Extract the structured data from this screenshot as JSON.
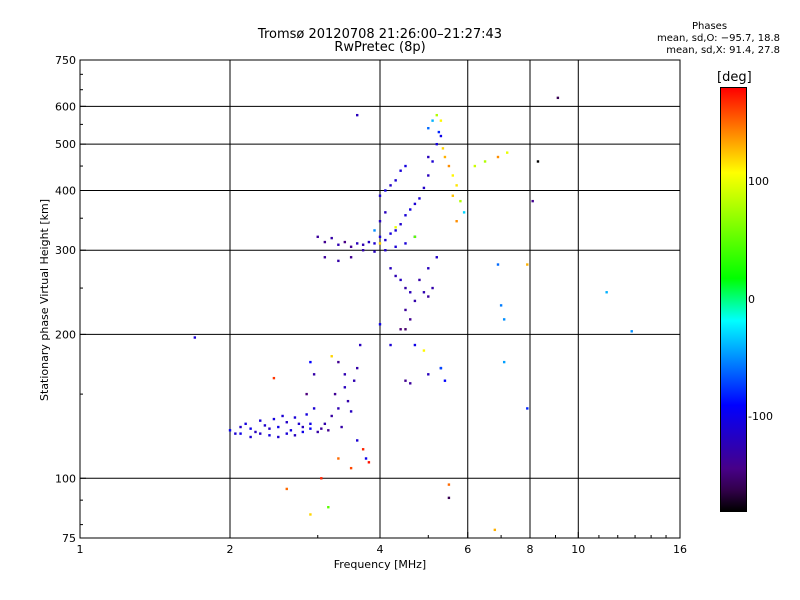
{
  "chart_data": {
    "type": "scatter",
    "title": "Tromsø 20120708 21:26:00–21:27:43",
    "subtitle": "RwPretec (8p)",
    "xlabel": "Frequency [MHz]",
    "ylabel": "Stationary phase Virtual Height [km]",
    "x_scale": "log",
    "y_scale": "log",
    "xlim": [
      1,
      16
    ],
    "ylim": [
      75,
      750
    ],
    "x_ticks": [
      1,
      2,
      4,
      6,
      8,
      10,
      16
    ],
    "y_ticks": [
      75,
      100,
      200,
      300,
      400,
      500,
      600,
      750
    ],
    "grid": true,
    "phase_stats": {
      "title": "Phases",
      "line_o": "mean, sd,O: −95.7, 18.8",
      "line_x": "mean, sd,X:  91.4, 27.8"
    },
    "colorbar": {
      "unit": "[deg]",
      "ticks": [
        100,
        0,
        -100
      ],
      "range": [
        -180,
        180
      ]
    },
    "series": [
      {
        "points": [
          [
            2.05,
            124,
            -110
          ],
          [
            2.1,
            128,
            -115
          ],
          [
            2.15,
            130,
            -105
          ],
          [
            2.2,
            127,
            -100
          ],
          [
            2.25,
            125,
            -120
          ],
          [
            2.3,
            132,
            -108
          ],
          [
            2.35,
            129,
            -112
          ],
          [
            2.4,
            127,
            -118
          ],
          [
            2.45,
            133,
            -105
          ],
          [
            2.5,
            128,
            -100
          ],
          [
            2.55,
            135,
            -110
          ],
          [
            2.6,
            131,
            -115
          ],
          [
            2.65,
            126,
            -102
          ],
          [
            2.7,
            134,
            -108
          ],
          [
            2.75,
            130,
            -112
          ],
          [
            2.8,
            128,
            -120
          ],
          [
            2.85,
            136,
            -105
          ],
          [
            2.9,
            130,
            -100
          ],
          [
            2.95,
            140,
            -110
          ],
          [
            3.0,
            125,
            -130
          ],
          [
            3.05,
            127,
            -135
          ],
          [
            3.1,
            130,
            -128
          ],
          [
            3.15,
            126,
            -140
          ],
          [
            3.2,
            135,
            -132
          ],
          [
            3.25,
            150,
            -138
          ],
          [
            3.3,
            140,
            -125
          ],
          [
            3.35,
            128,
            -130
          ],
          [
            3.4,
            155,
            -120
          ],
          [
            3.45,
            145,
            -128
          ],
          [
            3.5,
            138,
            -118
          ],
          [
            3.55,
            160,
            -125
          ],
          [
            3.6,
            170,
            -130
          ],
          [
            3.65,
            190,
            -120
          ],
          [
            2.0,
            126,
            -95
          ],
          [
            2.1,
            124,
            -100
          ],
          [
            2.2,
            122,
            -110
          ],
          [
            2.3,
            124,
            -115
          ],
          [
            2.4,
            123,
            -105
          ],
          [
            2.5,
            122,
            -112
          ],
          [
            2.6,
            124,
            -108
          ],
          [
            2.7,
            123,
            -118
          ],
          [
            2.8,
            125,
            -100
          ],
          [
            2.9,
            127,
            -95
          ],
          [
            2.45,
            162,
            165
          ],
          [
            2.85,
            150,
            -150
          ],
          [
            2.9,
            175,
            -90
          ],
          [
            2.95,
            165,
            -130
          ],
          [
            3.3,
            175,
            -140
          ],
          [
            3.4,
            165,
            -125
          ],
          [
            3.7,
            115,
            170
          ],
          [
            3.75,
            110,
            -100
          ],
          [
            3.8,
            108,
            175
          ],
          [
            3.6,
            120,
            -110
          ],
          [
            2.6,
            95,
            150
          ],
          [
            2.9,
            84,
            120
          ],
          [
            3.05,
            100,
            170
          ],
          [
            3.15,
            87,
            50
          ]
        ]
      },
      {
        "points": [
          [
            3.0,
            320,
            -135
          ],
          [
            3.1,
            312,
            -140
          ],
          [
            3.2,
            318,
            -130
          ],
          [
            3.3,
            308,
            -125
          ],
          [
            3.4,
            312,
            -145
          ],
          [
            3.5,
            305,
            -138
          ],
          [
            3.6,
            310,
            -120
          ],
          [
            3.7,
            308,
            -125
          ],
          [
            3.8,
            312,
            -118
          ],
          [
            3.9,
            310,
            -112
          ],
          [
            4.0,
            320,
            -108
          ],
          [
            4.1,
            315,
            -110
          ],
          [
            4.2,
            325,
            -105
          ],
          [
            4.3,
            330,
            -108
          ],
          [
            4.4,
            340,
            -112
          ],
          [
            4.5,
            355,
            -108
          ],
          [
            4.6,
            365,
            -105
          ],
          [
            4.7,
            375,
            -110
          ],
          [
            4.8,
            385,
            -108
          ],
          [
            4.9,
            405,
            -115
          ],
          [
            5.0,
            430,
            -120
          ],
          [
            5.1,
            460,
            -110
          ],
          [
            5.2,
            500,
            -105
          ],
          [
            5.3,
            520,
            -100
          ],
          [
            3.1,
            290,
            -135
          ],
          [
            3.3,
            285,
            -130
          ],
          [
            3.5,
            290,
            -140
          ],
          [
            3.7,
            300,
            -128
          ],
          [
            3.9,
            298,
            -120
          ],
          [
            4.1,
            300,
            -115
          ],
          [
            4.3,
            305,
            -110
          ],
          [
            4.5,
            310,
            -108
          ],
          [
            4.7,
            320,
            -112
          ],
          [
            4.0,
            390,
            -110
          ],
          [
            4.1,
            400,
            -105
          ],
          [
            4.2,
            410,
            -115
          ],
          [
            4.3,
            420,
            -110
          ],
          [
            4.4,
            440,
            -108
          ],
          [
            4.5,
            450,
            -105
          ],
          [
            4.1,
            360,
            -120
          ],
          [
            4.0,
            345,
            -118
          ],
          [
            4.2,
            275,
            -120
          ],
          [
            4.3,
            265,
            -125
          ],
          [
            4.4,
            260,
            -118
          ],
          [
            4.5,
            250,
            -130
          ],
          [
            4.6,
            245,
            -122
          ],
          [
            4.7,
            235,
            -128
          ],
          [
            4.5,
            225,
            -135
          ],
          [
            4.6,
            215,
            -140
          ],
          [
            4.4,
            205,
            -150
          ],
          [
            4.5,
            205,
            -155
          ],
          [
            4.8,
            260,
            -130
          ],
          [
            4.9,
            245,
            -125
          ],
          [
            5.0,
            240,
            -135
          ],
          [
            5.1,
            250,
            -128
          ],
          [
            5.0,
            275,
            -120
          ],
          [
            5.2,
            290,
            -115
          ],
          [
            4.0,
            210,
            -100
          ],
          [
            4.2,
            190,
            -110
          ],
          [
            4.5,
            160,
            -140
          ],
          [
            4.6,
            158,
            -135
          ],
          [
            4.7,
            190,
            -100
          ],
          [
            5.0,
            165,
            -120
          ],
          [
            5.3,
            170,
            -100
          ],
          [
            5.4,
            160,
            -90
          ],
          [
            5.0,
            540,
            -60
          ],
          [
            5.1,
            560,
            -40
          ],
          [
            5.2,
            575,
            80
          ],
          [
            5.3,
            560,
            110
          ],
          [
            5.25,
            530,
            -80
          ],
          [
            5.35,
            490,
            120
          ],
          [
            5.4,
            470,
            130
          ],
          [
            5.5,
            450,
            140
          ],
          [
            5.6,
            430,
            110
          ],
          [
            5.7,
            410,
            115
          ],
          [
            5.6,
            390,
            125
          ],
          [
            5.8,
            380,
            80
          ],
          [
            5.9,
            360,
            -30
          ],
          [
            5.7,
            345,
            140
          ],
          [
            3.6,
            575,
            -120
          ],
          [
            4.0,
            310,
            120
          ],
          [
            3.9,
            330,
            -50
          ],
          [
            4.3,
            335,
            100
          ],
          [
            4.7,
            320,
            50
          ]
        ]
      },
      {
        "points": [
          [
            1.7,
            197,
            -110
          ],
          [
            5.0,
            470,
            -120
          ],
          [
            6.2,
            450,
            90
          ],
          [
            6.5,
            460,
            80
          ],
          [
            6.9,
            470,
            140
          ],
          [
            7.2,
            480,
            100
          ],
          [
            6.9,
            280,
            -60
          ],
          [
            7.0,
            230,
            -55
          ],
          [
            7.1,
            215,
            -50
          ],
          [
            7.1,
            175,
            -45
          ],
          [
            8.3,
            460,
            -180
          ],
          [
            8.1,
            380,
            -140
          ],
          [
            7.9,
            280,
            130
          ],
          [
            7.9,
            140,
            -80
          ],
          [
            9.1,
            625,
            -160
          ],
          [
            11.4,
            245,
            -40
          ],
          [
            12.8,
            203,
            -50
          ],
          [
            5.5,
            97,
            150
          ],
          [
            5.5,
            91,
            -160
          ],
          [
            6.8,
            78,
            130
          ],
          [
            5.3,
            170,
            -70
          ],
          [
            4.9,
            185,
            110
          ],
          [
            3.2,
            180,
            120
          ],
          [
            3.3,
            110,
            150
          ],
          [
            3.5,
            105,
            160
          ]
        ]
      }
    ]
  }
}
